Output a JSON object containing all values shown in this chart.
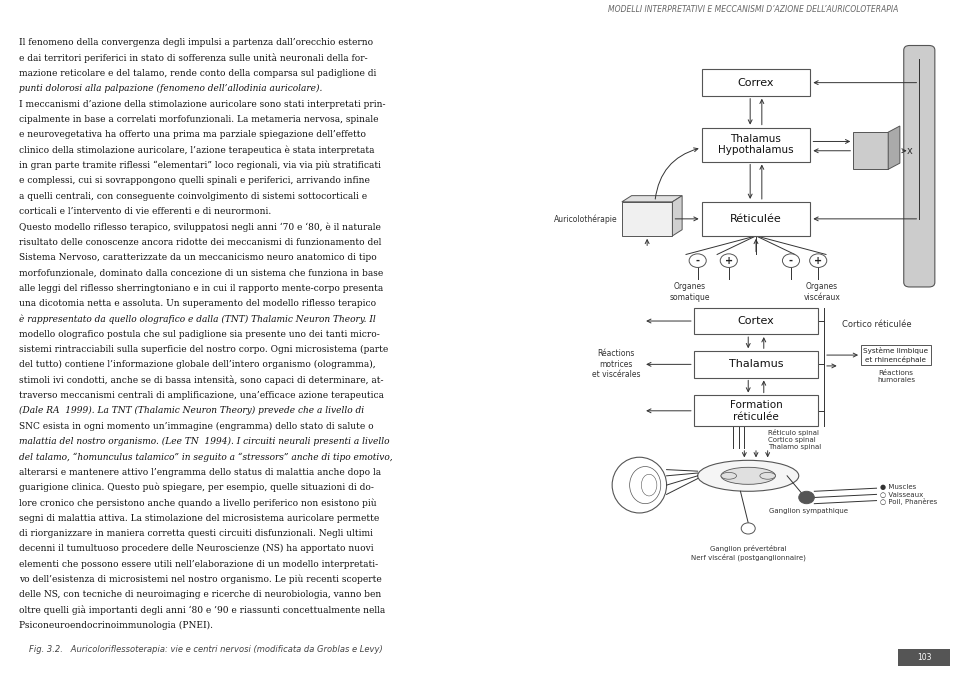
{
  "page_bg": "#ffffff",
  "header_text": "MODELLI INTERPRETATIVI E MECCANISMI D’AZIONE DELL’AURICOLOTERAPIA",
  "header_color": "#666666",
  "caption_text": "Fig. 3.2.   Auricoloriflessoterapia: vie e centri nervosi (modificata da Groblas e Levy)",
  "caption_color": "#444444",
  "body_lines": [
    "Il fenomeno della convergenza degli impulsi a partenza dall’orecchio esterno",
    "e dai territori periferici in stato di sofferenza sulle unità neuronali della for-",
    "mazione reticolare e del talamo, rende conto della comparsa sul padiglione di",
    "punti dolorosi alla palpazione (fenomeno dell’allodinia auricolare).",
    "I meccanismi d’azione della stimolazione auricolare sono stati interpretati prin-",
    "cipalmente in base a correlati morfofunzionali. La metameria nervosa, spinale",
    "e neurovegetativa ha offerto una prima ma parziale spiegazione dell’effetto",
    "clinico della stimolazione auricolare, l’azione terapeutica è stata interpretata",
    "in gran parte tramite riflessi “elementari” loco regionali, via via più stratificati",
    "e complessi, cui si sovrappongono quelli spinali e periferici, arrivando infine",
    "a quelli centrali, con conseguente coinvolgimento di sistemi sottocorticali e",
    "corticali e l’intervento di vie efferenti e di neurormoni.",
    "Questo modello riflesso terapico, sviluppatosi negli anni ‘70 e ‘80, è il naturale",
    "risultato delle conoscenze ancora ridotte dei meccanismi di funzionamento del",
    "Sistema Nervoso, caratterizzate da un meccanicismo neuro anatomico di tipo",
    "morfofunzionale, dominato dalla concezione di un sistema che funziona in base",
    "alle leggi del riflesso sherringtoniano e in cui il rapporto mente-corpo presenta",
    "una dicotomia netta e assoluta. Un superamento del modello riflesso terapico",
    "è rappresentato da quello olografico e dalla (TNT) Thalamic Neuron Theory. Il",
    "modello olografico postula che sul padiglione sia presente uno dei tanti micro-",
    "sistemi rintracciabili sulla superficie del nostro corpo. Ogni microsistema (parte",
    "del tutto) contiene l’informazione globale dell’intero organismo (ologramma),",
    "stimoli ivi condotti, anche se di bassa intensità, sono capaci di determinare, at-",
    "traverso meccanismi centrali di amplificazione, una’efficace azione terapeutica",
    "(Dale RA  1999). La TNT (Thalamic Neuron Theory) prevede che a livello di",
    "SNC esista in ogni momento un’immagine (engramma) dello stato di salute o",
    "malattia del nostro organismo. (Lee TN  1994). I circuiti neurali presenti a livello",
    "del talamo, “homunculus talamico” in seguito a “stressors” anche di tipo emotivo,",
    "alterarsi e mantenere attivo l’engramma dello status di malattia anche dopo la",
    "guarigione clinica. Questo può spiegare, per esempio, quelle situazioni di do-",
    "lore cronico che persistono anche quando a livello periferico non esistono più",
    "segni di malattia attiva. La stimolazione del microsistema auricolare permette",
    "di riorganizzare in maniera corretta questi circuiti disfunzionali. Negli ultimi",
    "decenni il tumultuoso procedere delle Neuroscienze (NS) ha apportato nuovi",
    "elementi che possono essere utili nell’elaborazione di un modello interpretati-",
    "vo dell’esistenza di microsistemi nel nostro organismo. Le più recenti scoperte",
    "delle NS, con tecniche di neuroimaging e ricerche di neurobiologia, vanno ben",
    "oltre quelli già importanti degli anni ‘80 e ’90 e riassunti concettualmente nella",
    "Psiconeuroendocrinoimmunologia (PNEI)."
  ],
  "italic_phrases": [
    "allodinia auricolare",
    "Thalamic Neuron Theory",
    "Dale RA",
    "Lee TN",
    "homunculus talamico"
  ],
  "text_color": "#111111",
  "lc": "#333333",
  "ec": "#555555",
  "fc": "#ffffff",
  "gc": "#cccccc",
  "gc2": "#aaaaaa"
}
